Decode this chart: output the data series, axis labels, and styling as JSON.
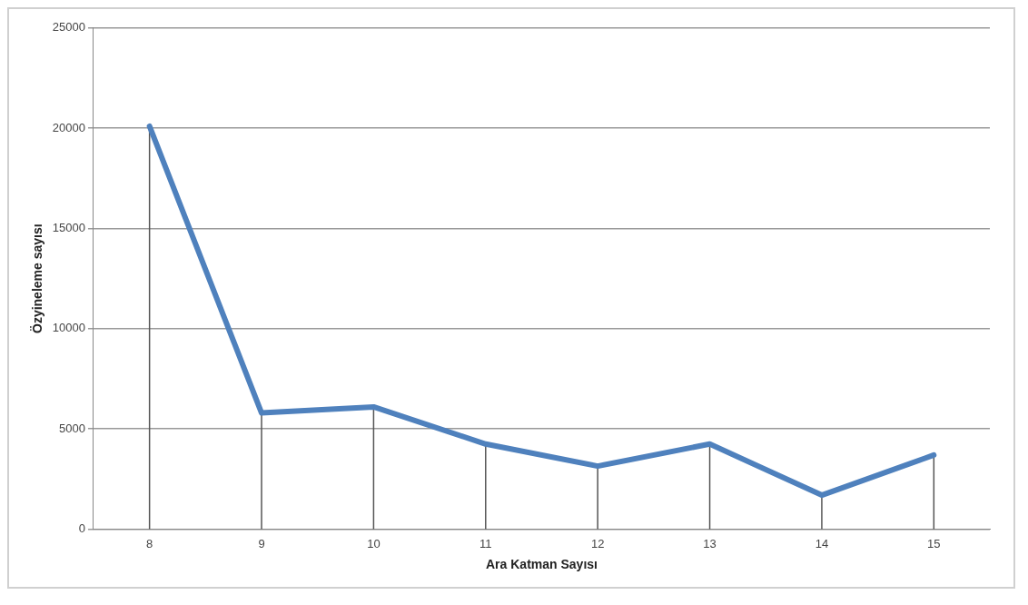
{
  "chart_data": {
    "type": "line",
    "xlabel": "Ara Katman Sayısı",
    "ylabel": "Özyineleme sayısı",
    "categories": [
      "8",
      "9",
      "10",
      "11",
      "12",
      "13",
      "14",
      "15"
    ],
    "series": [
      {
        "color": "#4f81bd",
        "values": [
          20100,
          5800,
          6100,
          4250,
          3150,
          4250,
          1700,
          3700
        ],
        "errors": [
          [
            0,
            20100
          ],
          [
            0,
            5800
          ],
          [
            0,
            6100
          ],
          [
            0,
            4250
          ],
          [
            0,
            3150
          ],
          [
            0,
            4250
          ],
          [
            0,
            1700
          ],
          [
            0,
            3700
          ]
        ]
      }
    ],
    "ylim": [
      0,
      25000
    ],
    "yticks": [
      0,
      5000,
      10000,
      15000,
      20000,
      25000
    ],
    "grid": "y",
    "legend": false,
    "marker": "none",
    "line_style": "solid"
  }
}
